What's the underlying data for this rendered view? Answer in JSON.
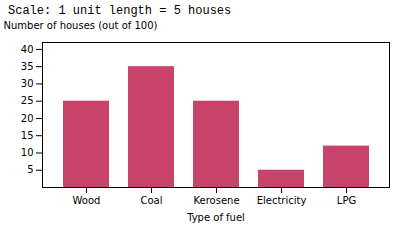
{
  "chart_data": {
    "type": "bar",
    "title": "Scale: 1 unit length = 5 houses",
    "xlabel": "Type of fuel",
    "ylabel": "Number of houses (out of 100)",
    "categories": [
      "Wood",
      "Coal",
      "Kerosene",
      "Electricity",
      "LPG"
    ],
    "values": [
      25,
      35,
      25,
      5,
      12
    ],
    "color": "#c8436a",
    "ylim": [
      0,
      42
    ],
    "yticks": [
      5,
      10,
      15,
      20,
      25,
      30,
      35,
      40
    ],
    "grid": false
  }
}
